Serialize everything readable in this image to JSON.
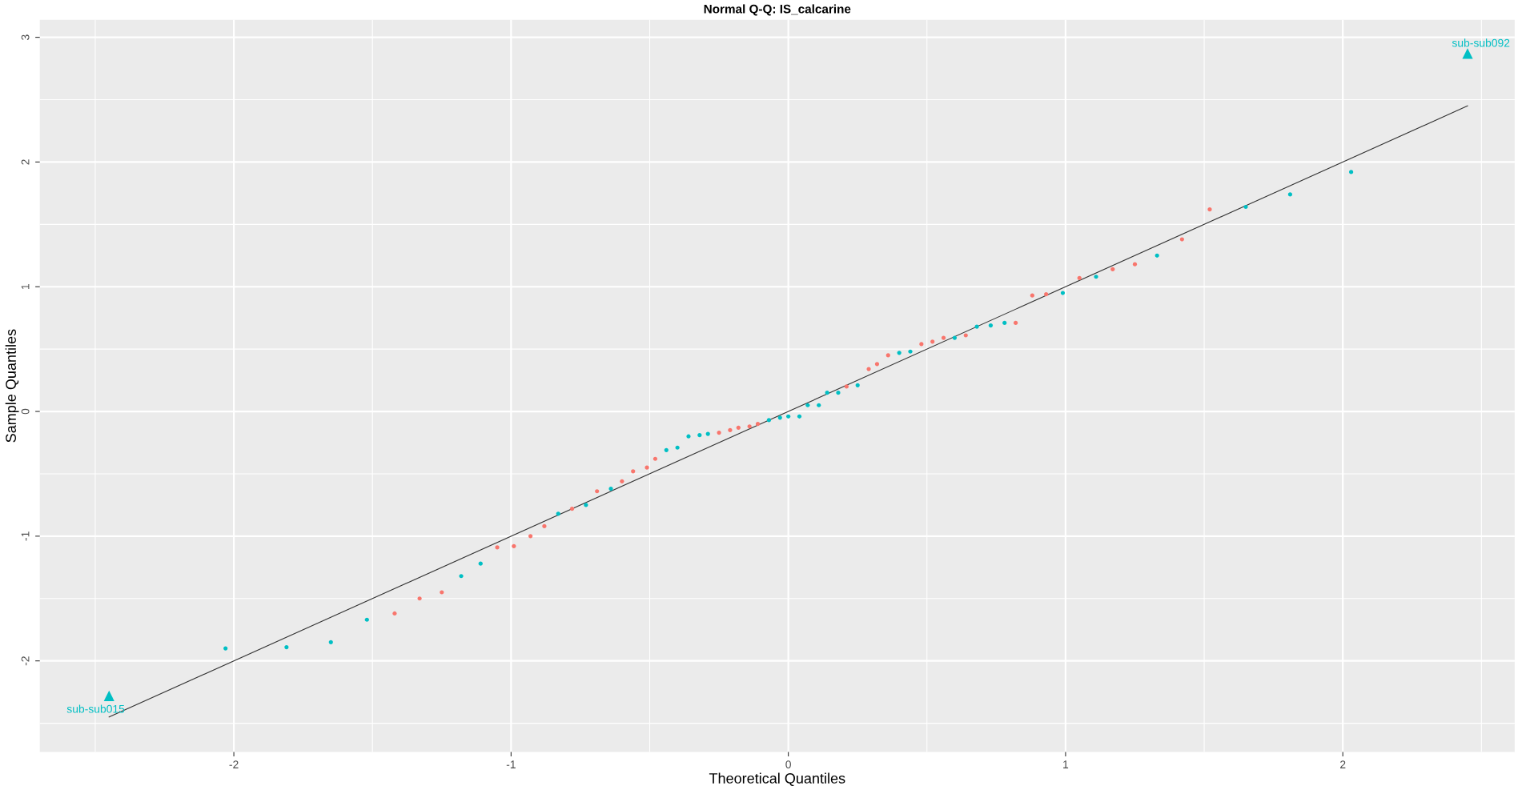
{
  "chart_data": {
    "type": "scatter",
    "title": "Normal Q-Q: IS_calcarine",
    "xlabel": "Theoretical Quantiles",
    "ylabel": "Sample Quantiles",
    "xlim": [
      -2.7,
      2.62
    ],
    "ylim": [
      -2.73,
      3.14
    ],
    "xticks": [
      -2,
      -1,
      0,
      1,
      2
    ],
    "yticks": [
      -2,
      -1,
      0,
      1,
      2,
      3
    ],
    "grid": true,
    "legend": false,
    "marker": "circle",
    "series": [
      {
        "type": "line",
        "color": "#333333",
        "x": [
          -2.45,
          2.45
        ],
        "values": [
          -2.45,
          2.45
        ],
        "marker": "none"
      },
      {
        "color": "#00bfc4",
        "x": [
          -2.03,
          -1.81,
          -1.65,
          -1.52,
          -1.18,
          -1.11,
          -0.83,
          -0.73,
          -0.64,
          -0.44,
          -0.4,
          -0.36,
          -0.32,
          -0.29,
          -0.07,
          -0.03,
          0.0,
          0.04,
          0.07,
          0.11,
          0.14,
          0.18,
          0.25,
          0.4,
          0.44,
          0.6,
          0.68,
          0.73,
          0.78,
          0.99,
          1.11,
          1.33,
          1.65,
          1.81,
          2.03
        ],
        "values": [
          -1.9,
          -1.89,
          -1.85,
          -1.67,
          -1.32,
          -1.22,
          -0.82,
          -0.75,
          -0.62,
          -0.31,
          -0.29,
          -0.2,
          -0.19,
          -0.18,
          -0.07,
          -0.05,
          -0.04,
          -0.04,
          0.05,
          0.05,
          0.15,
          0.15,
          0.21,
          0.47,
          0.48,
          0.59,
          0.68,
          0.69,
          0.71,
          0.95,
          1.08,
          1.25,
          1.64,
          1.74,
          1.92
        ]
      },
      {
        "color": "#f8766d",
        "x": [
          -1.42,
          -1.33,
          -1.25,
          -1.05,
          -0.99,
          -0.93,
          -0.88,
          -0.78,
          -0.69,
          -0.6,
          -0.56,
          -0.51,
          -0.48,
          -0.25,
          -0.21,
          -0.18,
          -0.14,
          -0.11,
          0.21,
          0.29,
          0.32,
          0.36,
          0.48,
          0.52,
          0.56,
          0.64,
          0.82,
          0.88,
          0.93,
          1.05,
          1.17,
          1.25,
          1.42,
          1.52
        ],
        "values": [
          -1.62,
          -1.5,
          -1.45,
          -1.09,
          -1.08,
          -1.0,
          -0.92,
          -0.78,
          -0.64,
          -0.56,
          -0.48,
          -0.45,
          -0.38,
          -0.17,
          -0.15,
          -0.13,
          -0.12,
          -0.1,
          0.2,
          0.34,
          0.38,
          0.45,
          0.54,
          0.56,
          0.59,
          0.61,
          0.71,
          0.93,
          0.94,
          1.07,
          1.14,
          1.18,
          1.38,
          1.62
        ]
      },
      {
        "color": "#00bfc4",
        "marker": "triangle",
        "x": [
          -2.45,
          2.45
        ],
        "values": [
          -2.28,
          2.87
        ]
      }
    ],
    "annotations": [
      {
        "text": "sub-sub015",
        "x": -2.45,
        "y": -2.28
      },
      {
        "text": "sub-sub092",
        "x": 2.45,
        "y": 2.87
      }
    ]
  }
}
